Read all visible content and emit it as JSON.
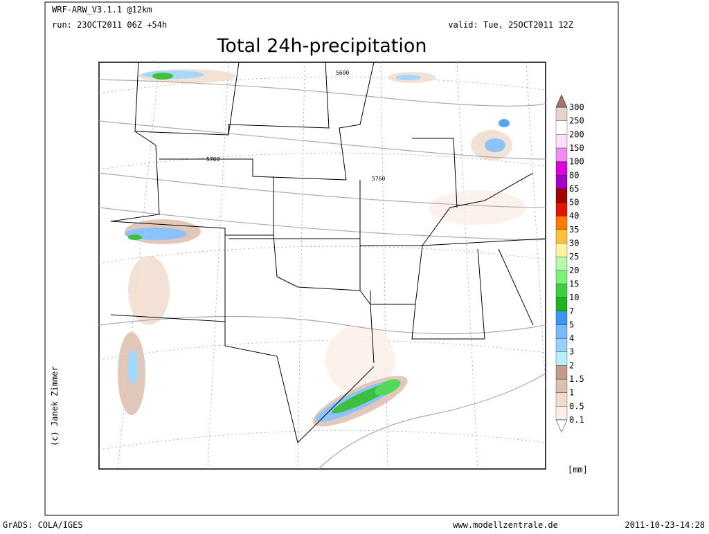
{
  "header": {
    "model": "WRF-ARW_V3.1.1 @12km",
    "run": "run: 23OCT2011 06Z +54h",
    "valid": "valid: Tue, 25OCT2011 12Z",
    "title": "Total 24h-precipitation"
  },
  "map": {
    "contour_labels": [
      5600,
      5760,
      5760
    ],
    "copyright": "(c) Janek Zimmer"
  },
  "legend": {
    "levels": [
      0.1,
      0.5,
      1,
      1.5,
      2,
      3,
      4,
      5,
      7,
      10,
      15,
      20,
      25,
      30,
      35,
      40,
      50,
      65,
      80,
      100,
      150,
      200,
      250,
      300
    ],
    "colors": [
      "#ffffff",
      "#fbefe8",
      "#f0dccd",
      "#dcbfae",
      "#c49b8a",
      "#b4f0fa",
      "#96d2fa",
      "#78b9fa",
      "#3c96f5",
      "#1eb41e",
      "#37d23c",
      "#78f573",
      "#b4faaa",
      "#fff5a0",
      "#ffc03c",
      "#ff7a00",
      "#e11400",
      "#a50000",
      "#a000c8",
      "#dc00dc",
      "#f08cf0",
      "#fde0fd",
      "#ffffff",
      "#e6d2c8",
      "#a0786e"
    ],
    "unit": "[mm]"
  },
  "footer": {
    "left": "GrADS: COLA/IGES",
    "center": "www.modellzentrale.de",
    "right": "2011-10-23-14:28"
  }
}
